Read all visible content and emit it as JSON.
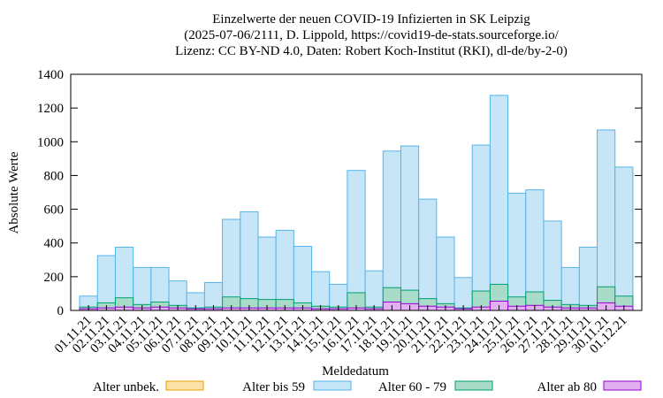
{
  "chart_data": {
    "type": "bar",
    "title": [
      "Einzelwerte der neuen COVID-19 Infizierten in SK Leipzig",
      "(2025-07-06/2111, D. Lippold, https://covid19-de-stats.sourceforge.io/",
      "Lizenz: CC BY-ND 4.0, Daten: Robert Koch-Institut (RKI), dl-de/by-2-0)"
    ],
    "x_label": "Meldedatum",
    "y_label": "Absolute Werte",
    "categories": [
      "01.11.21",
      "02.11.21",
      "03.11.21",
      "04.11.21",
      "05.11.21",
      "06.11.21",
      "07.11.21",
      "08.11.21",
      "09.11.21",
      "10.11.21",
      "11.11.21",
      "12.11.21",
      "13.11.21",
      "14.11.21",
      "15.11.21",
      "16.11.21",
      "17.11.21",
      "18.11.21",
      "19.11.21",
      "20.11.21",
      "21.11.21",
      "22.11.21",
      "23.11.21",
      "24.11.21",
      "25.11.21",
      "26.11.21",
      "27.11.21",
      "28.11.21",
      "29.11.21",
      "30.11.21",
      "01.12.21"
    ],
    "series": [
      {
        "name": "Alter unbek.",
        "color": "#fbe3a8",
        "edge": "#e6a000",
        "values": [
          0,
          0,
          0,
          0,
          0,
          0,
          0,
          0,
          0,
          0,
          0,
          0,
          0,
          0,
          0,
          0,
          0,
          0,
          0,
          0,
          0,
          0,
          0,
          0,
          0,
          0,
          0,
          0,
          0,
          0,
          0
        ]
      },
      {
        "name": "Alter bis 59",
        "color": "#c6e6f8",
        "edge": "#56b4e9",
        "values": [
          85,
          325,
          375,
          255,
          255,
          175,
          105,
          165,
          540,
          585,
          435,
          475,
          380,
          230,
          155,
          830,
          235,
          945,
          975,
          660,
          435,
          195,
          980,
          1275,
          695,
          715,
          530,
          255,
          375,
          1070,
          850
        ]
      },
      {
        "name": "Alter 60 - 79",
        "color": "#a8dcc8",
        "edge": "#009e73",
        "values": [
          20,
          45,
          75,
          35,
          50,
          30,
          15,
          20,
          80,
          70,
          65,
          65,
          45,
          25,
          20,
          105,
          20,
          135,
          120,
          70,
          40,
          15,
          115,
          155,
          80,
          110,
          60,
          35,
          30,
          140,
          85
        ]
      },
      {
        "name": "Alter ab 80",
        "color": "#e0b0f0",
        "edge": "#9400d3",
        "values": [
          10,
          15,
          20,
          15,
          20,
          15,
          10,
          10,
          15,
          15,
          15,
          15,
          15,
          10,
          10,
          15,
          10,
          50,
          40,
          25,
          20,
          10,
          20,
          55,
          25,
          30,
          20,
          15,
          15,
          45,
          25
        ]
      }
    ],
    "ylim": [
      0,
      1400
    ],
    "yticks": [
      0,
      200,
      400,
      600,
      800,
      1000,
      1200,
      1400
    ]
  }
}
